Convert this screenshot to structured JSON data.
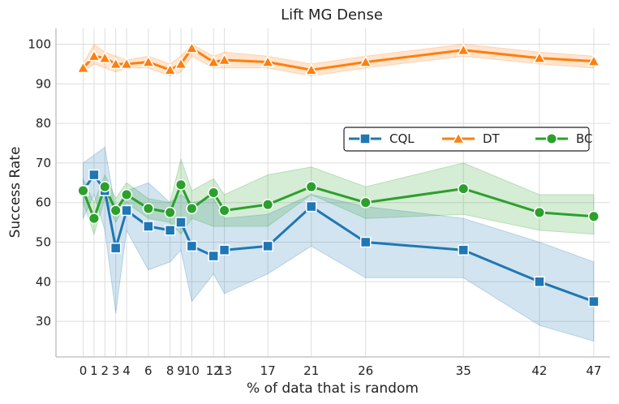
{
  "chart_data": {
    "type": "line",
    "title": "Lift MG Dense",
    "xlabel": "% of data that is random",
    "ylabel": "Success Rate",
    "x": [
      0,
      1,
      2,
      3,
      4,
      6,
      8,
      9,
      10,
      12,
      13,
      17,
      21,
      26,
      35,
      42,
      47
    ],
    "xlim": [
      -2.5,
      48.5
    ],
    "ylim": [
      21,
      104
    ],
    "yticks": [
      30,
      40,
      50,
      60,
      70,
      80,
      90,
      100
    ],
    "grid": true,
    "legend_position": "center-right",
    "series": [
      {
        "name": "CQL",
        "color": "#1f77b4",
        "marker": "square",
        "values": [
          63,
          67,
          63,
          48.5,
          58,
          54,
          53,
          55,
          49,
          46.5,
          48,
          49,
          59,
          50,
          48,
          40,
          35
        ],
        "lower": [
          56,
          62,
          53,
          32,
          53,
          43,
          45,
          48,
          35,
          42,
          37,
          42,
          49,
          41,
          41,
          29,
          25
        ],
        "upper": [
          70,
          72,
          74,
          58,
          63,
          65,
          60,
          62,
          60,
          61,
          56,
          57,
          62,
          59,
          56,
          50,
          45
        ]
      },
      {
        "name": "DT",
        "color": "#ff7f0e",
        "marker": "triangle",
        "values": [
          94,
          97,
          96.5,
          95,
          95,
          95.5,
          93.5,
          95,
          99,
          95.5,
          96,
          95.5,
          93.5,
          95.5,
          98.5,
          96.5,
          95.7
        ],
        "lower": [
          93,
          95,
          94,
          93,
          94,
          94,
          92,
          93,
          97,
          94,
          94,
          94,
          92,
          94,
          97,
          95,
          94
        ],
        "upper": [
          95,
          100,
          98,
          97,
          96,
          97,
          95,
          97,
          100,
          97,
          98,
          97,
          95,
          97,
          100,
          98,
          97
        ]
      },
      {
        "name": "BC",
        "color": "#2ca02c",
        "marker": "circle",
        "values": [
          63,
          56,
          64,
          58,
          62,
          58.5,
          57.5,
          64.5,
          58.5,
          62.5,
          58,
          59.5,
          64,
          60,
          63.5,
          57.5,
          56.5
        ],
        "lower": [
          60,
          52,
          61,
          55,
          60,
          56,
          55,
          52,
          56,
          54,
          54,
          54,
          62,
          56,
          57,
          53,
          52
        ],
        "upper": [
          66,
          60,
          67,
          61,
          65,
          61,
          60,
          71,
          63,
          66,
          62,
          67,
          69,
          64,
          70,
          62,
          62
        ]
      }
    ]
  }
}
